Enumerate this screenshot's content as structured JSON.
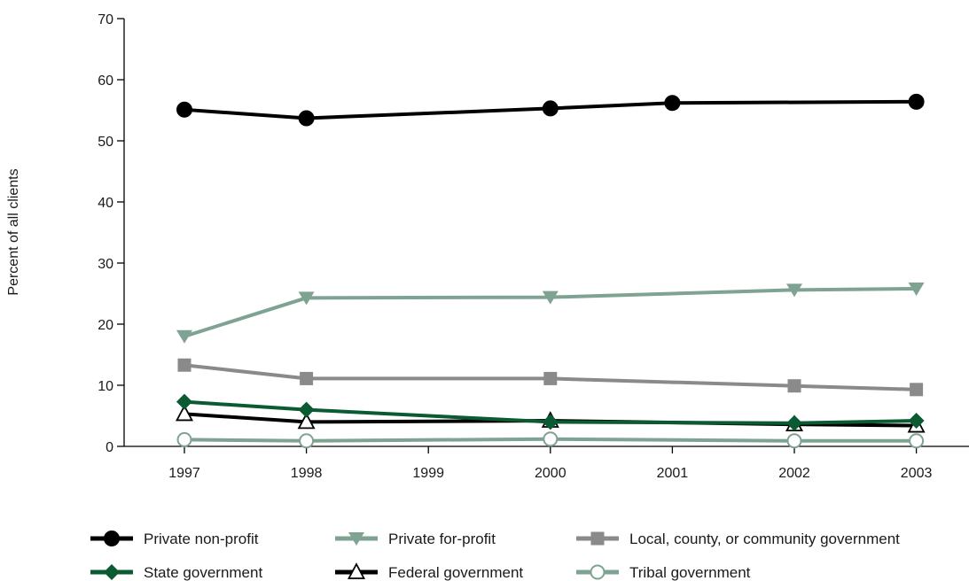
{
  "chart_data": {
    "type": "line",
    "title": "",
    "xlabel": "",
    "ylabel": "Percent of all clients",
    "x_ticks": [
      "1997",
      "1998",
      "1999",
      "2000",
      "2001",
      "2002",
      "2003"
    ],
    "ylim": [
      0,
      70
    ],
    "y_ticks": [
      "0",
      "10",
      "20",
      "30",
      "40",
      "50",
      "60",
      "70"
    ],
    "grid": false,
    "legend_position": "bottom",
    "series": [
      {
        "name": "Private non-profit",
        "color": "#000000",
        "marker": "filled-circle",
        "x": [
          1997,
          1998,
          2000,
          2001,
          2003
        ],
        "y": [
          55.1,
          53.7,
          55.3,
          56.2,
          56.4
        ]
      },
      {
        "name": "Private for-profit",
        "color": "#7fa392",
        "marker": "down-triangle",
        "x": [
          1997,
          1998,
          2000,
          2002,
          2003
        ],
        "y": [
          18.0,
          24.3,
          24.4,
          25.6,
          25.8
        ]
      },
      {
        "name": "Local, county, or community government",
        "color": "#8a8a8a",
        "marker": "square",
        "x": [
          1997,
          1998,
          2000,
          2002,
          2003
        ],
        "y": [
          13.3,
          11.1,
          11.1,
          9.9,
          9.3
        ]
      },
      {
        "name": "State government",
        "color": "#0a5a32",
        "marker": "diamond",
        "x": [
          1997,
          1998,
          2000,
          2002,
          2003
        ],
        "y": [
          7.3,
          6.0,
          4.0,
          3.8,
          4.2
        ]
      },
      {
        "name": "Federal government",
        "color": "#000000",
        "marker": "open-triangle",
        "x": [
          1997,
          1998,
          2000,
          2002,
          2003
        ],
        "y": [
          5.3,
          4.0,
          4.2,
          3.6,
          3.4
        ]
      },
      {
        "name": "Tribal government",
        "color": "#7fa392",
        "marker": "open-circle",
        "x": [
          1997,
          1998,
          2000,
          2002,
          2003
        ],
        "y": [
          1.1,
          0.9,
          1.2,
          0.9,
          0.9
        ]
      }
    ]
  }
}
